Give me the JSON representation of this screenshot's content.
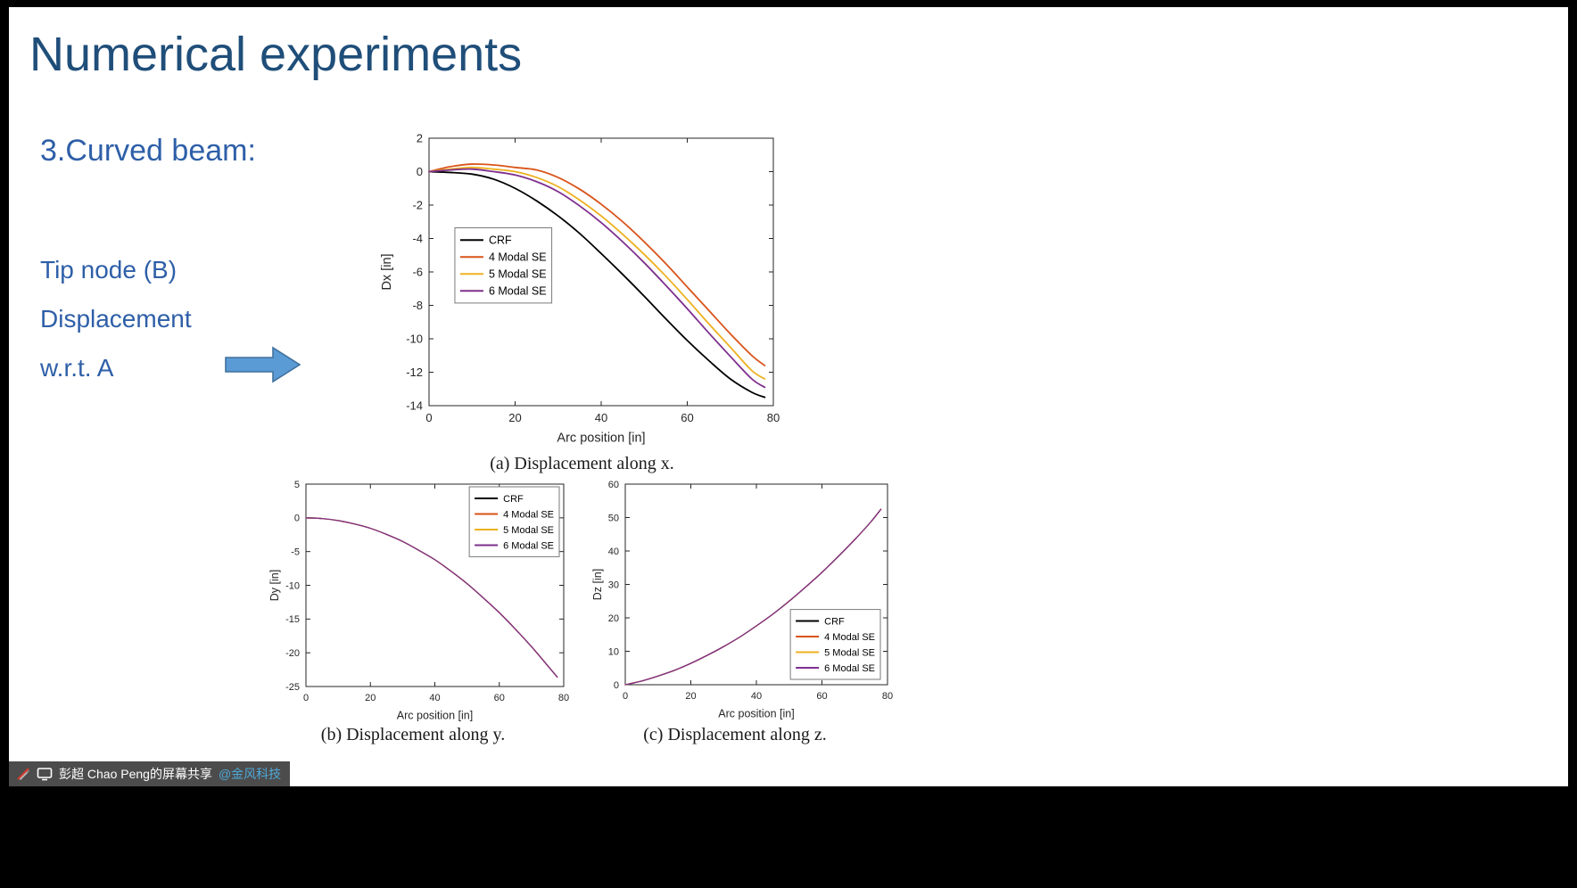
{
  "slide": {
    "title": "Numerical experiments",
    "section": "3.Curved beam:",
    "notes": [
      "Tip node (B)",
      "Displacement",
      "w.r.t. A"
    ],
    "captions": {
      "a": "(a) Displacement along x.",
      "b": "(b) Displacement along y.",
      "c": "(c) Displacement along z."
    }
  },
  "status_bar": {
    "text": "彭超 Chao Peng的屏幕共享",
    "link": "@金风科技"
  },
  "colors": {
    "title_text": "#1F4E79",
    "body_text": "#2E5FA8",
    "arrow_fill": "#5B9BD5",
    "arrow_border": "#41719C",
    "axis": "#262626",
    "series_crf": "#000000",
    "series_4modal": "#D95319",
    "series_5modal": "#EDB120",
    "series_6modal": "#7E2F8E",
    "share_link": "#4FA8D8"
  },
  "chart_data": [
    {
      "id": "dx",
      "type": "line",
      "title": "",
      "xlabel": "Arc position [in]",
      "ylabel": "Dx [in]",
      "xlim": [
        0,
        80
      ],
      "ylim": [
        -14,
        2
      ],
      "xticks": [
        0,
        20,
        40,
        60,
        80
      ],
      "yticks": [
        2,
        0,
        -2,
        -4,
        -6,
        -8,
        -10,
        -12,
        -14
      ],
      "grid": false,
      "legend_position": "left-middle",
      "x": [
        0,
        5,
        10,
        15,
        20,
        25,
        30,
        35,
        40,
        45,
        50,
        55,
        60,
        65,
        70,
        75,
        78
      ],
      "series": [
        {
          "name": "CRF",
          "color": "#000000",
          "values": [
            0,
            -0.05,
            -0.15,
            -0.45,
            -1.0,
            -1.75,
            -2.65,
            -3.7,
            -4.9,
            -6.15,
            -7.45,
            -8.8,
            -10.1,
            -11.3,
            -12.4,
            -13.2,
            -13.5
          ]
        },
        {
          "name": "4 Modal SE",
          "color": "#D95319",
          "values": [
            0,
            0.3,
            0.45,
            0.4,
            0.25,
            0.1,
            -0.35,
            -1.05,
            -1.95,
            -3.0,
            -4.2,
            -5.5,
            -6.9,
            -8.3,
            -9.7,
            -11.0,
            -11.6
          ]
        },
        {
          "name": "5 Modal SE",
          "color": "#EDB120",
          "values": [
            0,
            0.15,
            0.25,
            0.15,
            0.0,
            -0.35,
            -0.9,
            -1.7,
            -2.65,
            -3.75,
            -4.95,
            -6.25,
            -7.65,
            -9.1,
            -10.5,
            -11.9,
            -12.4
          ]
        },
        {
          "name": "6 Modal SE",
          "color": "#7E2F8E",
          "values": [
            0,
            0.1,
            0.15,
            0.0,
            -0.2,
            -0.6,
            -1.2,
            -2.05,
            -3.05,
            -4.2,
            -5.45,
            -6.8,
            -8.2,
            -9.65,
            -11.05,
            -12.4,
            -12.9
          ]
        }
      ]
    },
    {
      "id": "dy",
      "type": "line",
      "title": "",
      "xlabel": "Arc position [in]",
      "ylabel": "Dy [in]",
      "xlim": [
        0,
        80
      ],
      "ylim": [
        -25,
        5
      ],
      "xticks": [
        0,
        20,
        40,
        60,
        80
      ],
      "yticks": [
        5,
        0,
        -5,
        -10,
        -15,
        -20,
        -25
      ],
      "grid": false,
      "legend_position": "top-right",
      "x": [
        0,
        5,
        10,
        15,
        20,
        25,
        30,
        35,
        40,
        45,
        50,
        55,
        60,
        65,
        70,
        75,
        78
      ],
      "series": [
        {
          "name": "CRF",
          "color": "#000000",
          "values": [
            0,
            -0.1,
            -0.4,
            -0.9,
            -1.55,
            -2.45,
            -3.5,
            -4.8,
            -6.2,
            -7.9,
            -9.75,
            -11.85,
            -14.05,
            -16.5,
            -19.1,
            -21.9,
            -23.6
          ]
        },
        {
          "name": "4 Modal SE",
          "color": "#D95319",
          "values": [
            0,
            -0.1,
            -0.4,
            -0.9,
            -1.55,
            -2.45,
            -3.5,
            -4.8,
            -6.2,
            -7.9,
            -9.75,
            -11.85,
            -14.05,
            -16.5,
            -19.1,
            -21.9,
            -23.6
          ]
        },
        {
          "name": "5 Modal SE",
          "color": "#EDB120",
          "values": [
            0,
            -0.1,
            -0.4,
            -0.9,
            -1.55,
            -2.45,
            -3.5,
            -4.8,
            -6.2,
            -7.9,
            -9.75,
            -11.85,
            -14.05,
            -16.5,
            -19.1,
            -21.9,
            -23.6
          ]
        },
        {
          "name": "6 Modal SE",
          "color": "#7E2F8E",
          "values": [
            0,
            -0.1,
            -0.4,
            -0.9,
            -1.55,
            -2.45,
            -3.5,
            -4.8,
            -6.2,
            -7.9,
            -9.75,
            -11.85,
            -14.05,
            -16.5,
            -19.1,
            -21.9,
            -23.6
          ]
        }
      ]
    },
    {
      "id": "dz",
      "type": "line",
      "title": "",
      "xlabel": "Arc position [in]",
      "ylabel": "Dz [in]",
      "xlim": [
        0,
        80
      ],
      "ylim": [
        0,
        60
      ],
      "xticks": [
        0,
        20,
        40,
        60,
        80
      ],
      "yticks": [
        0,
        10,
        20,
        30,
        40,
        50,
        60
      ],
      "grid": false,
      "legend_position": "bottom-right",
      "x": [
        0,
        5,
        10,
        15,
        20,
        25,
        30,
        35,
        40,
        45,
        50,
        55,
        60,
        65,
        70,
        75,
        78
      ],
      "series": [
        {
          "name": "CRF",
          "color": "#000000",
          "values": [
            0,
            1.1,
            2.6,
            4.3,
            6.4,
            8.8,
            11.4,
            14.3,
            17.6,
            21.1,
            25.0,
            29.2,
            33.6,
            38.4,
            43.4,
            48.8,
            52.5
          ]
        },
        {
          "name": "4 Modal SE",
          "color": "#D95319",
          "values": [
            0,
            1.1,
            2.6,
            4.3,
            6.4,
            8.8,
            11.4,
            14.3,
            17.6,
            21.1,
            25.0,
            29.2,
            33.6,
            38.4,
            43.4,
            48.8,
            52.5
          ]
        },
        {
          "name": "5 Modal SE",
          "color": "#EDB120",
          "values": [
            0,
            1.1,
            2.6,
            4.3,
            6.4,
            8.8,
            11.4,
            14.3,
            17.6,
            21.1,
            25.0,
            29.2,
            33.6,
            38.4,
            43.4,
            48.8,
            52.5
          ]
        },
        {
          "name": "6 Modal SE",
          "color": "#7E2F8E",
          "values": [
            0,
            1.1,
            2.6,
            4.3,
            6.4,
            8.8,
            11.4,
            14.3,
            17.6,
            21.1,
            25.0,
            29.2,
            33.6,
            38.4,
            43.4,
            48.8,
            52.5
          ]
        }
      ]
    }
  ]
}
